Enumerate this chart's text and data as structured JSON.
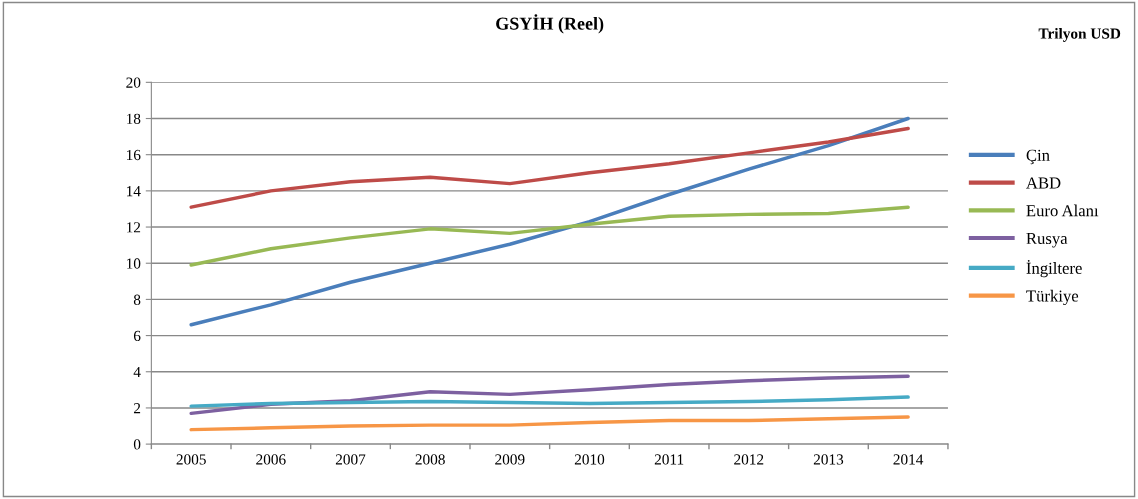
{
  "chart_data": {
    "type": "line",
    "title": "GSYİH (Reel)",
    "annotations": [
      "Trilyon USD"
    ],
    "categories": [
      "2005",
      "2006",
      "2007",
      "2008",
      "2009",
      "2010",
      "2011",
      "2012",
      "2013",
      "2014"
    ],
    "ylim": [
      0,
      20
    ],
    "yticks": [
      0,
      2,
      4,
      6,
      8,
      10,
      12,
      14,
      16,
      18,
      20
    ],
    "grid": "y",
    "legend": "right",
    "marker": "none",
    "line_style": "solid",
    "series": [
      {
        "name": "Çin",
        "color": "#4a7ebb",
        "values": [
          6.6,
          7.7,
          8.95,
          10.0,
          11.05,
          12.3,
          13.8,
          15.2,
          16.5,
          18.0
        ]
      },
      {
        "name": "ABD",
        "color": "#be4b48",
        "values": [
          13.1,
          14.0,
          14.5,
          14.75,
          14.4,
          15.0,
          15.5,
          16.1,
          16.7,
          17.45
        ]
      },
      {
        "name": "Euro Alanı",
        "color": "#98b954",
        "values": [
          9.9,
          10.8,
          11.4,
          11.9,
          11.65,
          12.15,
          12.6,
          12.7,
          12.75,
          13.1
        ]
      },
      {
        "name": "Rusya",
        "color": "#7d60a0",
        "values": [
          1.7,
          2.2,
          2.4,
          2.9,
          2.75,
          3.0,
          3.3,
          3.5,
          3.65,
          3.75
        ]
      },
      {
        "name": "İngiltere",
        "color": "#46aac5",
        "values": [
          2.1,
          2.25,
          2.3,
          2.35,
          2.3,
          2.25,
          2.3,
          2.35,
          2.45,
          2.6
        ]
      },
      {
        "name": "Türkiye",
        "color": "#f79646",
        "values": [
          0.8,
          0.9,
          1.0,
          1.05,
          1.05,
          1.2,
          1.3,
          1.3,
          1.4,
          1.5
        ]
      }
    ]
  }
}
